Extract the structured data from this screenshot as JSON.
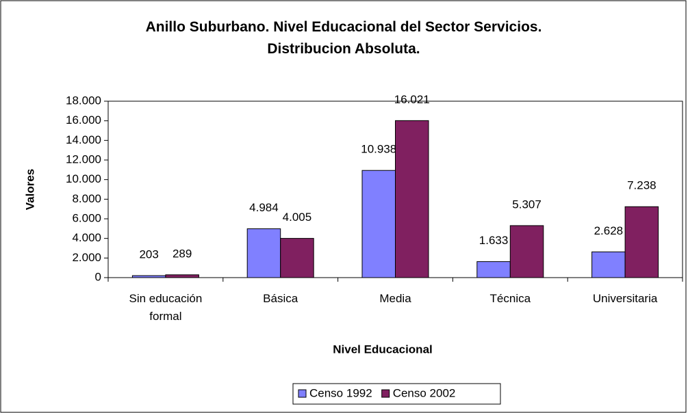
{
  "chart_data": {
    "type": "bar",
    "title": "Anillo Suburbano. Nivel Educacional del Sector Servicios. Distribucion Absoluta.",
    "x_label": "Nivel Educacional",
    "y_label": "Valores",
    "categories": [
      "Sin educación formal",
      "Básica",
      "Media",
      "Técnica",
      "Universitaria"
    ],
    "series": [
      {
        "name": "Censo 1992",
        "color": "#8080ff",
        "values": [
          203,
          4984,
          10938,
          1633,
          2628
        ],
        "value_labels": [
          "203",
          "4.984",
          "10.938",
          "1.633",
          "2.628"
        ]
      },
      {
        "name": "Censo 2002",
        "color": "#802060",
        "values": [
          289,
          4005,
          16021,
          5307,
          7238
        ],
        "value_labels": [
          "289",
          "4.005",
          "16.021",
          "5.307",
          "7.238"
        ]
      }
    ],
    "ylim": [
      0,
      18000
    ],
    "yticks": [
      0,
      {
        "value": 2000,
        "label": "2.000"
      },
      {
        "value": 4000,
        "label": "4.000"
      },
      {
        "value": 6000,
        "label": "6.000"
      },
      {
        "value": 8000,
        "label": "8.000"
      },
      {
        "value": 10000,
        "label": "10.000"
      },
      {
        "value": 12000,
        "label": "12.000"
      },
      {
        "value": 14000,
        "label": "14.000"
      },
      {
        "value": 16000,
        "label": "16.000"
      },
      {
        "value": 18000,
        "label": "18.000"
      }
    ],
    "legend": "bottom",
    "grid": false
  }
}
